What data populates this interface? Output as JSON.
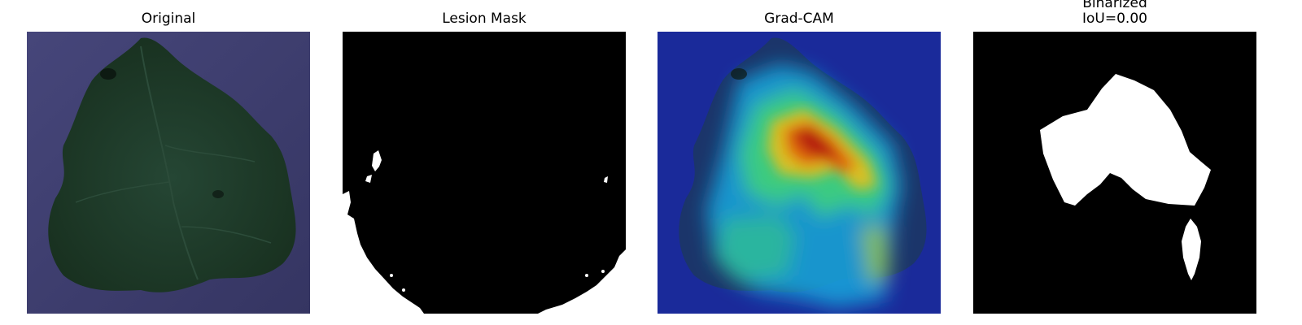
{
  "panels": [
    {
      "title": "Original"
    },
    {
      "title": "Lesion Mask"
    },
    {
      "title": "Grad-CAM"
    },
    {
      "title_line1": "Binarized",
      "title_line2": "IoU=0.00"
    }
  ],
  "colors": {
    "background": "#ffffff",
    "mask_background": "#000000",
    "mask_foreground": "#ffffff",
    "leaf_backdrop": "#3f3f6e",
    "leaf": "#1f3a2b"
  }
}
